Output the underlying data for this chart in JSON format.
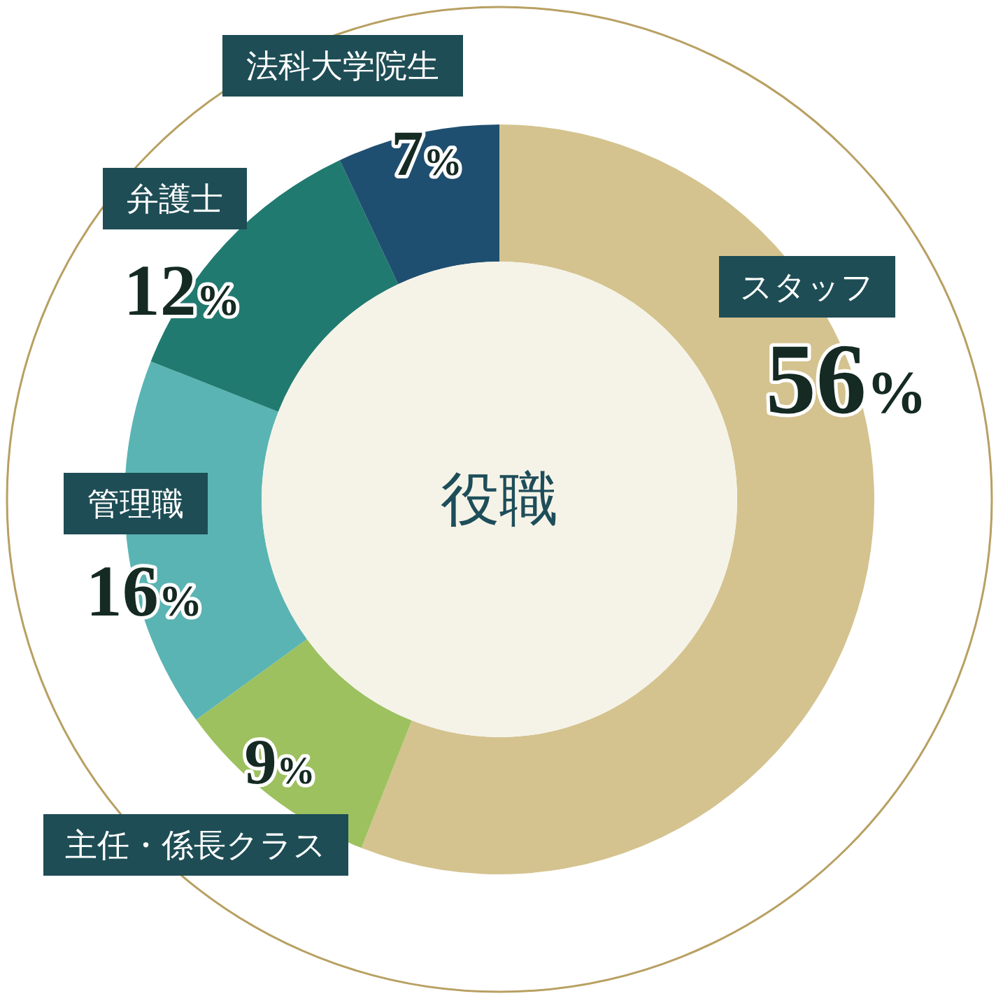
{
  "chart_data": {
    "type": "donut",
    "title": "役職",
    "categories": [
      "スタッフ",
      "主任・係長クラス",
      "管理職",
      "弁護士",
      "法科大学院生"
    ],
    "values": [
      56,
      9,
      16,
      12,
      7
    ],
    "value_labels": [
      "56%",
      "9%",
      "16%",
      "12%",
      "7%"
    ],
    "colors": [
      "#d4c38f",
      "#9dc15f",
      "#5ab4b3",
      "#217a70",
      "#1f4f70"
    ]
  }
}
